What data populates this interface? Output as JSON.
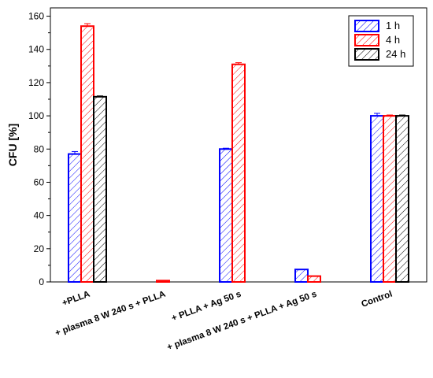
{
  "chart_data": {
    "type": "bar",
    "ylabel": "CFU [%]",
    "xlabel": "",
    "ylim": [
      0,
      165
    ],
    "yticks": [
      0,
      20,
      40,
      60,
      80,
      100,
      120,
      140,
      160
    ],
    "categories": [
      "+PLLA",
      "+ plasma 8 W 240 s + PLLA",
      "+ PLLA + Ag 50 s",
      "+ plasma 8 W 240 s + PLLA + Ag 50 s",
      "Control"
    ],
    "series": [
      {
        "name": "1 h",
        "color": "#0000ff",
        "values": [
          77,
          null,
          80,
          7.5,
          100
        ],
        "errors": [
          1.5,
          null,
          0.5,
          0,
          1.5
        ]
      },
      {
        "name": "4 h",
        "color": "#ff0000",
        "values": [
          154,
          0.8,
          131,
          3.5,
          100
        ],
        "errors": [
          1.5,
          0,
          1,
          0,
          0.5
        ]
      },
      {
        "name": "24 h",
        "color": "#000000",
        "values": [
          111.5,
          null,
          null,
          null,
          100
        ],
        "errors": [
          0.5,
          null,
          null,
          null,
          0.5
        ]
      }
    ],
    "legend_position": "top-right",
    "hatch": "diagonal"
  }
}
